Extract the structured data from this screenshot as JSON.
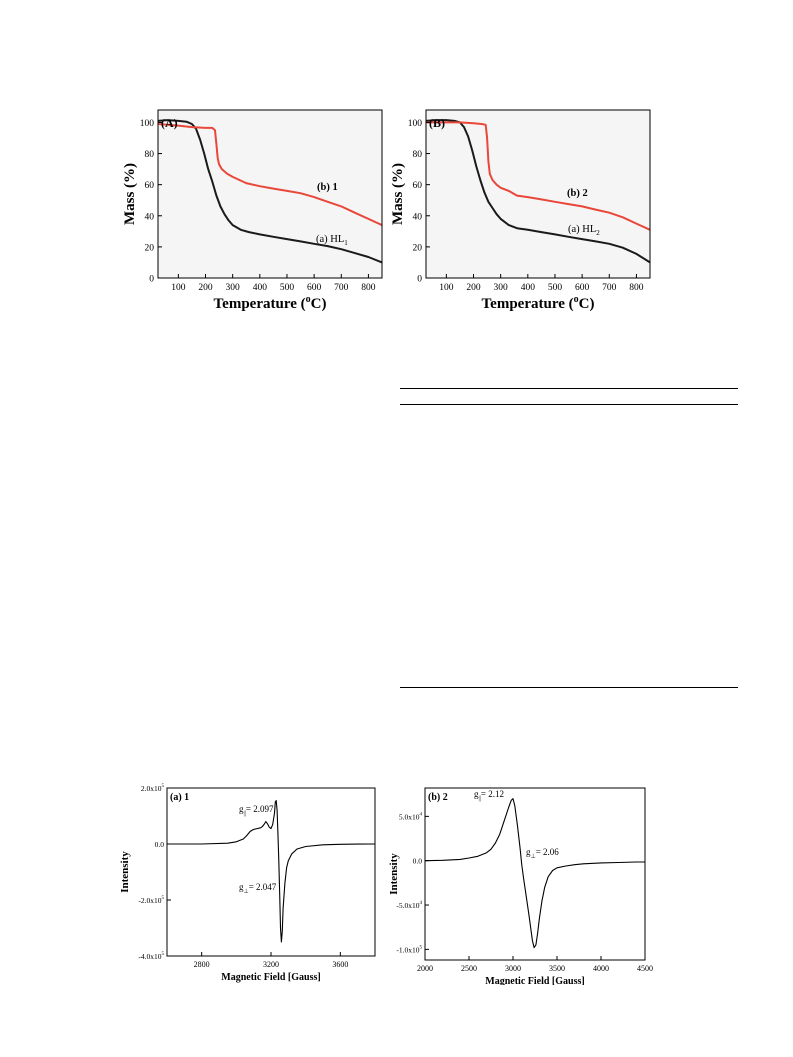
{
  "colors": {
    "black": "#1a1a1a",
    "red": "#e8473a",
    "axis": "#000000"
  },
  "chart_data": [
    {
      "id": "tga-A",
      "type": "line",
      "panel_label": "(A)",
      "xlabel": "Temperature (°C)",
      "xlabel_main": "Temperature (",
      "xlabel_sup": "o",
      "xlabel_tail": "C)",
      "ylabel": "Mass (%)",
      "xlim": [
        25,
        850
      ],
      "ylim": [
        0,
        108
      ],
      "xticks": [
        100,
        200,
        300,
        400,
        500,
        600,
        700,
        800
      ],
      "yticks": [
        0,
        20,
        40,
        60,
        80,
        100
      ],
      "series": [
        {
          "name": "(a) HL1",
          "label_main": "(a) HL",
          "label_sub": "1",
          "color": "#1a1a1a",
          "x": [
            25,
            60,
            100,
            130,
            150,
            165,
            180,
            195,
            210,
            225,
            240,
            255,
            270,
            285,
            300,
            330,
            360,
            400,
            450,
            500,
            550,
            600,
            650,
            700,
            750,
            800,
            850
          ],
          "y": [
            101,
            101.5,
            101,
            100.5,
            99,
            96,
            89,
            80,
            70,
            62,
            53,
            46,
            41,
            37,
            34,
            31,
            29.5,
            28,
            26.5,
            25,
            23.5,
            22,
            20.5,
            18.5,
            16,
            13.5,
            10
          ]
        },
        {
          "name": "(b) 1",
          "label_main": "(b)  1",
          "label_sub": "",
          "color": "#e8473a",
          "x": [
            25,
            100,
            150,
            200,
            225,
            235,
            240,
            245,
            250,
            260,
            280,
            300,
            350,
            400,
            450,
            500,
            550,
            600,
            650,
            700,
            750,
            800,
            850
          ],
          "y": [
            99,
            98,
            97,
            96.5,
            96.5,
            95,
            86,
            77,
            73,
            70,
            67,
            65,
            61,
            59,
            57.5,
            56,
            54.5,
            52,
            49,
            46,
            42,
            38,
            34
          ]
        }
      ]
    },
    {
      "id": "tga-B",
      "type": "line",
      "panel_label": "(B)",
      "xlabel": "Temperature (°C)",
      "xlabel_main": "Temperature (",
      "xlabel_sup": "o",
      "xlabel_tail": "C)",
      "ylabel": "Mass (%)",
      "xlim": [
        25,
        850
      ],
      "ylim": [
        0,
        108
      ],
      "xticks": [
        100,
        200,
        300,
        400,
        500,
        600,
        700,
        800
      ],
      "yticks": [
        0,
        20,
        40,
        60,
        80,
        100
      ],
      "series": [
        {
          "name": "(a) HL2",
          "label_main": "(a) HL",
          "label_sub": "2",
          "color": "#1a1a1a",
          "x": [
            25,
            60,
            100,
            130,
            150,
            165,
            180,
            195,
            210,
            225,
            240,
            255,
            270,
            285,
            300,
            330,
            360,
            400,
            450,
            500,
            550,
            600,
            650,
            700,
            750,
            800,
            850
          ],
          "y": [
            101,
            101.5,
            101.5,
            101,
            100,
            97,
            91,
            82,
            72,
            63,
            55,
            49,
            45,
            41,
            38,
            34,
            32,
            31,
            29.5,
            28,
            26.5,
            25,
            23.5,
            22,
            19.5,
            15.5,
            10
          ]
        },
        {
          "name": "(b) 2",
          "label_main": "(b)  2",
          "label_sub": "",
          "color": "#e8473a",
          "x": [
            25,
            100,
            150,
            200,
            230,
            245,
            250,
            255,
            260,
            270,
            285,
            300,
            330,
            360,
            400,
            450,
            500,
            550,
            600,
            650,
            700,
            750,
            800,
            850
          ],
          "y": [
            100,
            100,
            100,
            99.5,
            99,
            98.5,
            90,
            75,
            67,
            63,
            60,
            58,
            56,
            53,
            52,
            50.5,
            49,
            47.5,
            46,
            44,
            42,
            39,
            35,
            31
          ]
        }
      ]
    },
    {
      "id": "epr-a",
      "type": "line",
      "panel_label": "(a) 1",
      "xlabel": "Magnetic Field [Gauss]",
      "ylabel": "Intensity",
      "xlim": [
        2600,
        3800
      ],
      "ylim": [
        -400000.0,
        200000.0
      ],
      "xticks": [
        2800,
        3200,
        3600
      ],
      "yticks": [
        -400000.0,
        -200000.0,
        0.0,
        200000.0
      ],
      "ytick_labels": [
        {
          "main": "-4.0x10",
          "exp": "5"
        },
        {
          "main": "-2.0x10",
          "exp": "5"
        },
        {
          "main": "0.0",
          "exp": ""
        },
        {
          "main": "2.0x10",
          "exp": "5"
        }
      ],
      "annotations": [
        {
          "g": "g",
          "sub": "||",
          "text": "= 2.097"
        },
        {
          "g": "g",
          "sub": "⊥",
          "text": "= 2.047"
        }
      ],
      "series": [
        {
          "name": "",
          "color": "#000000",
          "x": [
            2600,
            2800,
            2950,
            3000,
            3040,
            3060,
            3080,
            3100,
            3120,
            3140,
            3150,
            3160,
            3170,
            3180,
            3190,
            3200,
            3210,
            3220,
            3225,
            3230,
            3235,
            3240,
            3245,
            3250,
            3255,
            3260,
            3265,
            3270,
            3280,
            3290,
            3300,
            3320,
            3350,
            3400,
            3500,
            3600,
            3700,
            3800
          ],
          "y": [
            0,
            0,
            3000,
            8000,
            18000,
            30000,
            45000,
            52000,
            55000,
            58000,
            62000,
            70000,
            80000,
            72000,
            60000,
            55000,
            70000,
            110000,
            150000,
            155000,
            120000,
            40000,
            -60000,
            -180000,
            -300000,
            -350000,
            -310000,
            -230000,
            -140000,
            -85000,
            -60000,
            -35000,
            -18000,
            -9000,
            -3000,
            -1000,
            -500,
            0
          ]
        }
      ]
    },
    {
      "id": "epr-b",
      "type": "line",
      "panel_label": "(b) 2",
      "xlabel": "Magnetic Field [Gauss]",
      "ylabel": "Intensity",
      "xlim": [
        2000,
        4500
      ],
      "ylim": [
        -112000.0,
        82000.0
      ],
      "xticks": [
        2000,
        2500,
        3000,
        3500,
        4000,
        4500
      ],
      "yticks": [
        -100000.0,
        -50000.0,
        0.0,
        50000.0
      ],
      "ytick_labels": [
        {
          "main": "-1.0x10",
          "exp": "5"
        },
        {
          "main": "-5.0x10",
          "exp": "4"
        },
        {
          "main": "0.0",
          "exp": ""
        },
        {
          "main": "5.0x10",
          "exp": "4"
        }
      ],
      "annotations": [
        {
          "g": "g",
          "sub": "||",
          "text": "= 2.12"
        },
        {
          "g": "g",
          "sub": "⊥",
          "text": "= 2.06"
        }
      ],
      "series": [
        {
          "name": "",
          "color": "#000000",
          "x": [
            2000,
            2200,
            2400,
            2500,
            2600,
            2700,
            2750,
            2800,
            2850,
            2900,
            2950,
            2980,
            3000,
            3020,
            3050,
            3080,
            3100,
            3120,
            3150,
            3180,
            3200,
            3220,
            3240,
            3260,
            3280,
            3300,
            3330,
            3360,
            3400,
            3450,
            3500,
            3600,
            3700,
            3800,
            4000,
            4200,
            4400,
            4500
          ],
          "y": [
            0,
            500,
            1500,
            3000,
            5000,
            9000,
            13000,
            20000,
            30000,
            45000,
            60000,
            68000,
            70000,
            62000,
            40000,
            15000,
            -5000,
            -20000,
            -40000,
            -60000,
            -75000,
            -90000,
            -98000,
            -95000,
            -82000,
            -65000,
            -45000,
            -30000,
            -18000,
            -11000,
            -8000,
            -6000,
            -4500,
            -3500,
            -2500,
            -2000,
            -1500,
            -1500
          ]
        }
      ]
    }
  ]
}
